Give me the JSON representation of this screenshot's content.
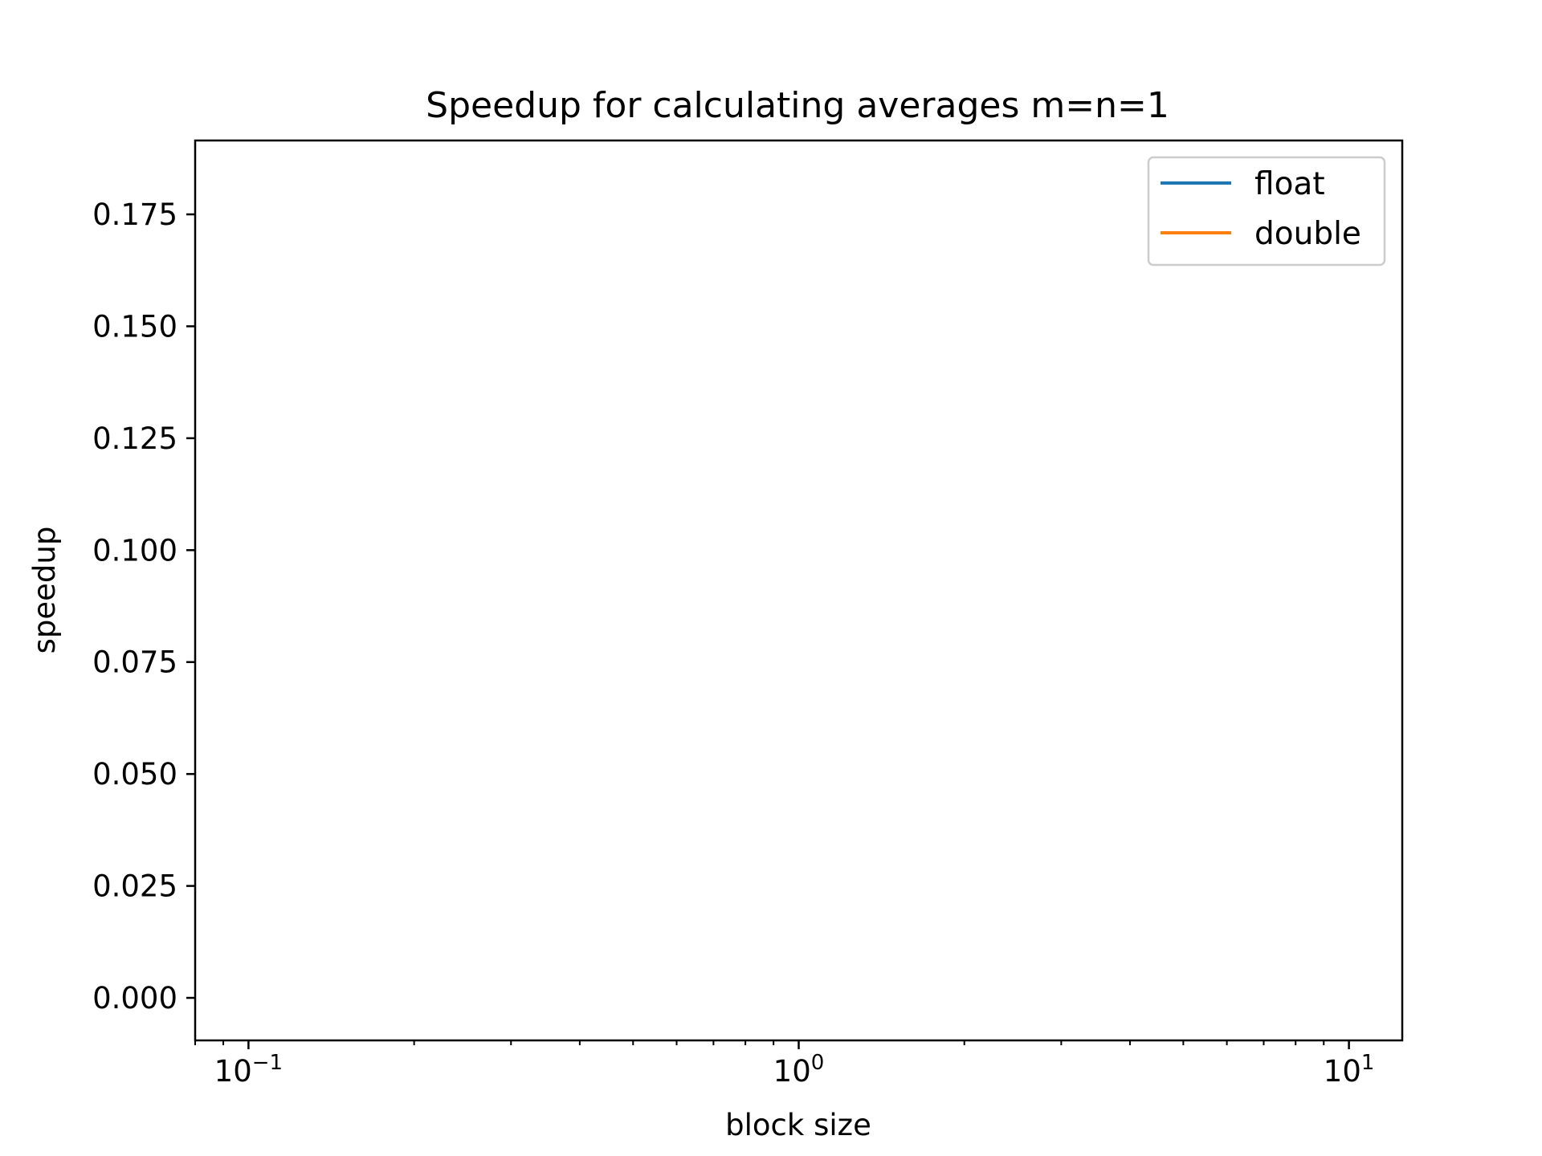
{
  "chart_data": {
    "type": "line",
    "title": "Speedup for calculating averages m=n=1",
    "xlabel": "block size",
    "ylabel": "speedup",
    "x_scale": "log",
    "xlim": [
      0.08,
      12.5
    ],
    "ylim": [
      -0.0095,
      0.1915
    ],
    "x_ticks": [
      {
        "base": "10",
        "exp": "−1",
        "value": 0.1
      },
      {
        "base": "10",
        "exp": "0",
        "value": 1
      },
      {
        "base": "10",
        "exp": "1",
        "value": 10
      }
    ],
    "y_ticks": [
      {
        "label": "0.000",
        "value": 0.0
      },
      {
        "label": "0.025",
        "value": 0.025
      },
      {
        "label": "0.050",
        "value": 0.05
      },
      {
        "label": "0.075",
        "value": 0.075
      },
      {
        "label": "0.100",
        "value": 0.1
      },
      {
        "label": "0.125",
        "value": 0.125
      },
      {
        "label": "0.150",
        "value": 0.15
      },
      {
        "label": "0.175",
        "value": 0.175
      }
    ],
    "series": [
      {
        "name": "float",
        "color": "#1f77b4",
        "values": []
      },
      {
        "name": "double",
        "color": "#ff7f0e",
        "values": []
      }
    ],
    "grid": false,
    "legend_position": "top-right"
  }
}
